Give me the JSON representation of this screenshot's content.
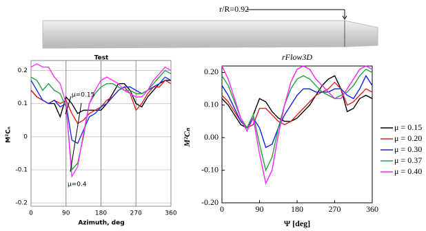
{
  "figure": {
    "blade_label": "r/R=0.92"
  },
  "chart_data": [
    {
      "type": "line",
      "title": "Test",
      "x_label": "Azimuth, deg",
      "y_label": "M²Cₙ",
      "x": [
        0,
        15,
        30,
        45,
        60,
        75,
        90,
        105,
        120,
        135,
        150,
        165,
        180,
        195,
        210,
        225,
        240,
        255,
        270,
        285,
        300,
        315,
        330,
        345,
        360
      ],
      "xlim": [
        0,
        360
      ],
      "xticks": [
        0,
        90,
        180,
        270,
        360
      ],
      "ylim": [
        -0.21,
        0.23
      ],
      "yticks": [
        0.2,
        0.1,
        0,
        -0.1,
        -0.2
      ],
      "grid": true,
      "annotations": [
        "μ=0.15",
        "μ=0.4"
      ],
      "series": [
        {
          "color": "#000000",
          "values": [
            0.14,
            0.12,
            0.11,
            0.1,
            0.1,
            0.06,
            0.12,
            0.1,
            0.07,
            0.08,
            0.08,
            0.08,
            0.08,
            0.1,
            0.13,
            0.16,
            0.16,
            0.14,
            0.1,
            0.09,
            0.12,
            0.14,
            0.16,
            0.17,
            0.17
          ]
        },
        {
          "color": "#e02020",
          "values": [
            0.14,
            0.12,
            0.11,
            0.1,
            0.11,
            0.1,
            0.11,
            0.07,
            0.04,
            0.05,
            0.07,
            0.08,
            0.09,
            0.11,
            0.12,
            0.14,
            0.15,
            0.13,
            0.08,
            0.1,
            0.13,
            0.15,
            0.15,
            0.17,
            0.16
          ]
        },
        {
          "color": "#2030e0",
          "values": [
            0.17,
            0.14,
            0.11,
            0.1,
            0.11,
            0.09,
            0.1,
            -0.01,
            -0.02,
            0.02,
            0.06,
            0.07,
            0.09,
            0.1,
            0.12,
            0.14,
            0.15,
            0.15,
            0.14,
            0.13,
            0.14,
            0.15,
            0.16,
            0.18,
            0.17
          ]
        },
        {
          "color": "#20a040",
          "values": [
            0.18,
            0.17,
            0.14,
            0.16,
            0.14,
            0.13,
            0.09,
            -0.1,
            -0.08,
            0.0,
            0.1,
            0.13,
            0.15,
            0.16,
            0.16,
            0.15,
            0.14,
            0.14,
            0.13,
            0.13,
            0.14,
            0.16,
            0.18,
            0.2,
            0.19
          ]
        },
        {
          "color": "#ff30ff",
          "values": [
            0.21,
            0.22,
            0.21,
            0.21,
            0.18,
            0.16,
            0.1,
            -0.12,
            -0.09,
            0.01,
            0.1,
            0.14,
            0.17,
            0.18,
            0.17,
            0.16,
            0.14,
            0.13,
            0.12,
            0.12,
            0.14,
            0.17,
            0.19,
            0.21,
            0.2
          ]
        }
      ]
    },
    {
      "type": "line",
      "title": "rFlow3D",
      "x_label": "Ψ [deg]",
      "y_label": "M²Cₙ",
      "x": [
        0,
        15,
        30,
        45,
        60,
        75,
        90,
        105,
        120,
        135,
        150,
        165,
        180,
        195,
        210,
        225,
        240,
        255,
        270,
        285,
        300,
        315,
        330,
        345,
        360
      ],
      "xlim": [
        0,
        360
      ],
      "xticks": [
        0,
        90,
        180,
        270,
        360
      ],
      "ylim": [
        -0.2,
        0.22
      ],
      "yticks": [
        {
          "value": 0.2,
          "label": "0.20"
        },
        {
          "value": 0.1,
          "label": "0.10"
        },
        {
          "value": 0,
          "label": "0.00"
        },
        {
          "value": -0.1,
          "label": "-0.10"
        },
        {
          "value": -0.2,
          "label": "-0.20"
        }
      ],
      "grid": false,
      "legend": "right",
      "series": [
        {
          "name": "μ = 0.15",
          "color": "#000000",
          "values": [
            0.12,
            0.1,
            0.07,
            0.04,
            0.03,
            0.07,
            0.12,
            0.11,
            0.08,
            0.06,
            0.05,
            0.05,
            0.06,
            0.08,
            0.1,
            0.13,
            0.16,
            0.18,
            0.19,
            0.15,
            0.08,
            0.09,
            0.12,
            0.13,
            0.12
          ]
        },
        {
          "name": "μ = 0.20",
          "color": "#e02020",
          "values": [
            0.13,
            0.11,
            0.08,
            0.05,
            0.03,
            0.04,
            0.09,
            0.09,
            0.07,
            0.05,
            0.04,
            0.05,
            0.07,
            0.09,
            0.11,
            0.13,
            0.14,
            0.15,
            0.17,
            0.15,
            0.1,
            0.11,
            0.13,
            0.15,
            0.14
          ]
        },
        {
          "name": "μ = 0.30",
          "color": "#1020e0",
          "values": [
            0.16,
            0.13,
            0.09,
            0.05,
            0.03,
            0.06,
            0.03,
            -0.03,
            -0.02,
            0.03,
            0.07,
            0.1,
            0.13,
            0.15,
            0.15,
            0.14,
            0.14,
            0.14,
            0.15,
            0.15,
            0.13,
            0.12,
            0.15,
            0.19,
            0.16
          ]
        },
        {
          "name": "μ = 0.37",
          "color": "#20a040",
          "values": [
            0.19,
            0.16,
            0.11,
            0.06,
            0.03,
            0.07,
            -0.02,
            -0.1,
            -0.06,
            0.03,
            0.1,
            0.15,
            0.18,
            0.19,
            0.18,
            0.16,
            0.14,
            0.13,
            0.12,
            0.13,
            0.14,
            0.16,
            0.19,
            0.21,
            0.2
          ]
        },
        {
          "name": "μ = 0.40",
          "color": "#ff20ff",
          "values": [
            0.22,
            0.18,
            0.12,
            0.06,
            0.02,
            0.06,
            -0.05,
            -0.14,
            -0.1,
            0.01,
            0.1,
            0.17,
            0.21,
            0.22,
            0.21,
            0.18,
            0.16,
            0.14,
            0.12,
            0.12,
            0.15,
            0.18,
            0.21,
            0.22,
            0.21
          ]
        }
      ]
    }
  ]
}
